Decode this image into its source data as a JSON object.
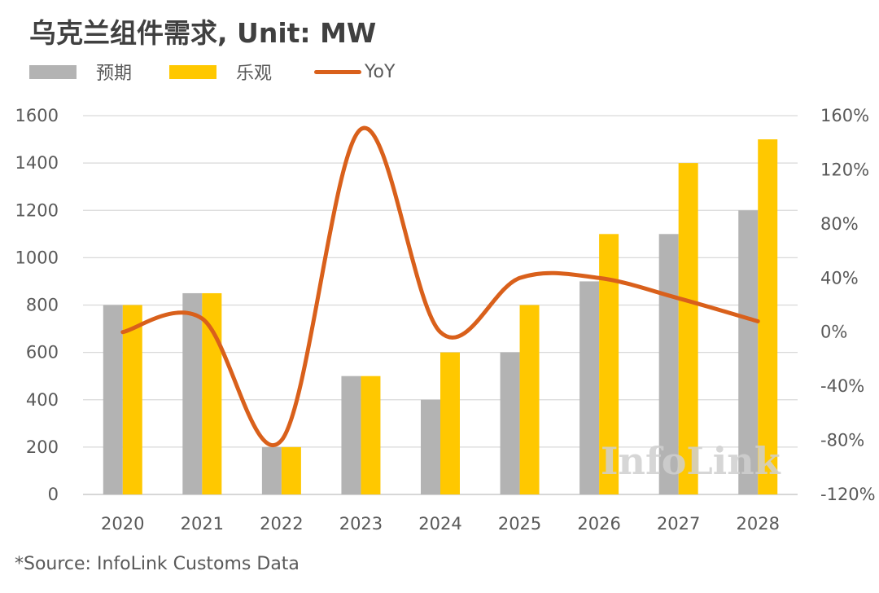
{
  "title": "乌克兰组件需求, Unit: MW",
  "source": "*Source: InfoLink Customs Data",
  "watermark": "InfoLink",
  "colors": {
    "expected": "#b3b3b3",
    "optimistic": "#ffc800",
    "yoy": "#d9601b",
    "grid": "#d9d9d9",
    "text": "#595959"
  },
  "chart_data": {
    "type": "bar",
    "categories": [
      "2020",
      "2021",
      "2022",
      "2023",
      "2024",
      "2025",
      "2026",
      "2027",
      "2028"
    ],
    "series": [
      {
        "name": "预期",
        "type": "bar",
        "axis": "left",
        "values": [
          800,
          850,
          200,
          500,
          400,
          600,
          900,
          1100,
          1200
        ]
      },
      {
        "name": "乐观",
        "type": "bar",
        "axis": "left",
        "values": [
          800,
          850,
          200,
          500,
          600,
          800,
          1100,
          1400,
          1500
        ]
      },
      {
        "name": "YoY",
        "type": "line",
        "axis": "right",
        "smooth": true,
        "values": [
          0,
          10,
          -80,
          150,
          0,
          40,
          40,
          25,
          8
        ]
      }
    ],
    "ylim": [
      0,
      1600
    ],
    "yticks": [
      "0",
      "200",
      "400",
      "600",
      "800",
      "1000",
      "1200",
      "1400",
      "1600"
    ],
    "y2lim": [
      -120,
      160
    ],
    "y2ticks": [
      "-120%",
      "-80%",
      "-40%",
      "0%",
      "40%",
      "80%",
      "120%",
      "160%"
    ],
    "legend_position": "top-left",
    "grid": true
  }
}
